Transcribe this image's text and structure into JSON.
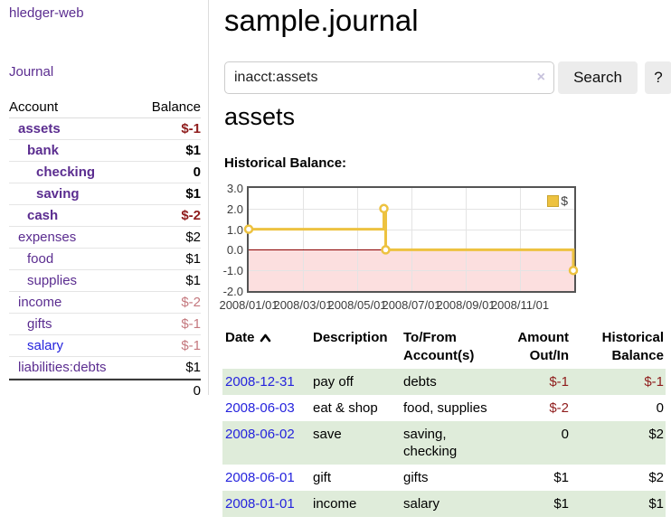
{
  "brand": "hledger-web",
  "nav": {
    "journal_label": "Journal"
  },
  "sidebar": {
    "header": {
      "account": "Account",
      "balance": "Balance"
    },
    "accounts": [
      {
        "name": "assets",
        "balance": "$-1",
        "level": 1,
        "bold": true,
        "balance_style": "negative"
      },
      {
        "name": "bank",
        "balance": "$1",
        "level": 2,
        "bold": true,
        "balance_style": "normal"
      },
      {
        "name": "checking",
        "balance": "0",
        "level": 3,
        "bold": true,
        "balance_style": "normal"
      },
      {
        "name": "saving",
        "balance": "$1",
        "level": 3,
        "bold": true,
        "balance_style": "normal"
      },
      {
        "name": "cash",
        "balance": "$-2",
        "level": 2,
        "bold": true,
        "balance_style": "negative"
      },
      {
        "name": "expenses",
        "balance": "$2",
        "level": 1,
        "bold": false,
        "balance_style": "normal"
      },
      {
        "name": "food",
        "balance": "$1",
        "level": 2,
        "bold": false,
        "balance_style": "normal"
      },
      {
        "name": "supplies",
        "balance": "$1",
        "level": 2,
        "bold": false,
        "balance_style": "normal"
      },
      {
        "name": "income",
        "balance": "$-2",
        "level": 1,
        "bold": false,
        "balance_style": "negative-faded"
      },
      {
        "name": "gifts",
        "balance": "$-1",
        "level": 2,
        "bold": false,
        "balance_style": "negative-faded"
      },
      {
        "name": "salary",
        "balance": "$-1",
        "level": 2,
        "bold": false,
        "balance_style": "negative-faded",
        "link_color": "blue"
      },
      {
        "name": "liabilities:debts",
        "balance": "$1",
        "level": 1,
        "bold": false,
        "balance_style": "normal"
      }
    ],
    "total": "0"
  },
  "header": {
    "title": "sample.journal"
  },
  "search": {
    "value": "inacct:assets",
    "clear_icon": "×",
    "button_label": "Search",
    "help_label": "?"
  },
  "account_page": {
    "title": "assets",
    "chart_label": "Historical Balance:"
  },
  "chart_data": {
    "type": "line",
    "step": true,
    "title": "Historical Balance:",
    "series": [
      {
        "name": "$",
        "color": "#edc240",
        "points": [
          [
            "2008-01-01",
            1
          ],
          [
            "2008-06-01",
            2
          ],
          [
            "2008-06-03",
            0
          ],
          [
            "2008-12-31",
            -1
          ]
        ]
      }
    ],
    "ylim": [
      -2,
      3
    ],
    "yticks": [
      "3.0",
      "2.0",
      "1.0",
      "0.0",
      "-1.0",
      "-2.0"
    ],
    "xticks": [
      "2008/01/01",
      "2008/03/01",
      "2008/05/01",
      "2008/07/01",
      "2008/09/01",
      "2008/11/01"
    ],
    "x_domain": [
      "2008-01-01",
      "2009-01-01"
    ],
    "legend": "$",
    "legend_position": "top-right",
    "grid": true,
    "negative_region_color": "#fcdfdf",
    "zero_line_color": "#8b0000"
  },
  "register": {
    "columns": [
      "Date",
      "Description",
      "To/From Account(s)",
      "Amount Out/In",
      "Historical Balance"
    ],
    "rows": [
      {
        "date": "2008-12-31",
        "description": "pay off",
        "accounts": "debts",
        "amount": "$-1",
        "balance": "$-1"
      },
      {
        "date": "2008-06-03",
        "description": "eat & shop",
        "accounts": "food, supplies",
        "amount": "$-2",
        "balance": "0"
      },
      {
        "date": "2008-06-02",
        "description": "save",
        "accounts": "saving, checking",
        "amount": "0",
        "balance": "$2"
      },
      {
        "date": "2008-06-01",
        "description": "gift",
        "accounts": "gifts",
        "amount": "$1",
        "balance": "$2"
      },
      {
        "date": "2008-01-01",
        "description": "income",
        "accounts": "salary",
        "amount": "$1",
        "balance": "$1"
      }
    ]
  },
  "colors": {
    "link_purple": "#5b2d90",
    "link_blue": "#2523dd",
    "negative": "#8f1c1c",
    "negative_faded": "#c4787e",
    "row_green": "#dfecda",
    "series_gold": "#edc240"
  }
}
